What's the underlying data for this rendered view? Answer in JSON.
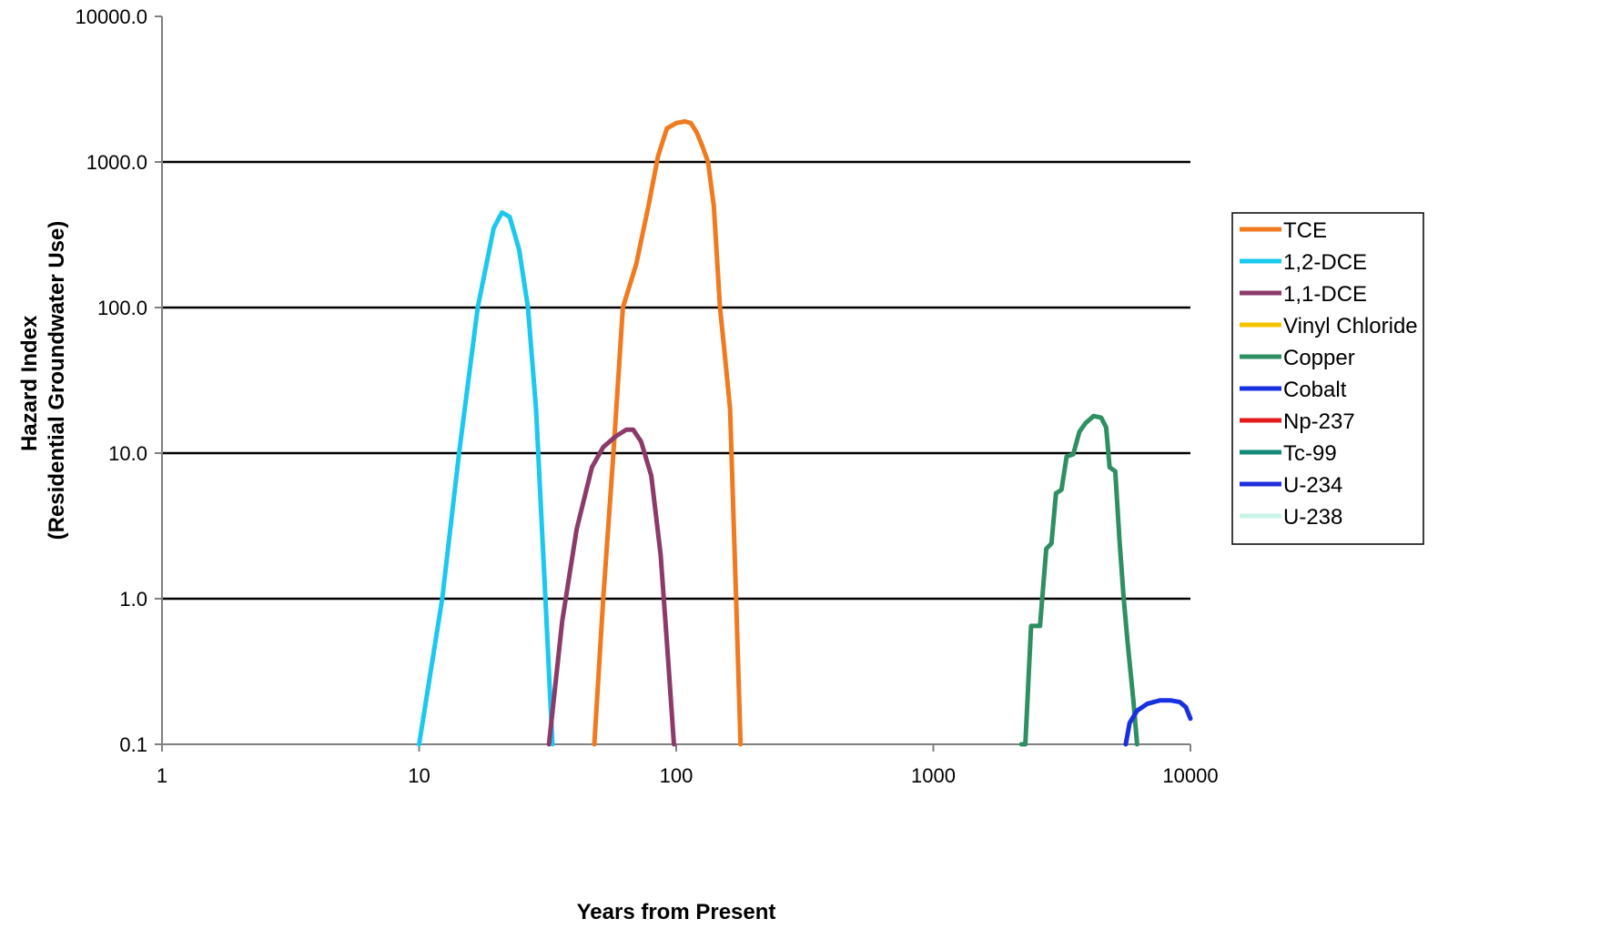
{
  "chart_data": {
    "type": "line",
    "title": "",
    "xlabel": "Years from Present",
    "ylabel_line1": "Hazard Index",
    "ylabel_line2": "(Residential Groundwater Use)",
    "x_scale": "log",
    "y_scale": "log",
    "xlim": [
      1,
      10000
    ],
    "ylim": [
      0.1,
      10000
    ],
    "x_ticks": [
      1,
      10,
      100,
      1000,
      10000
    ],
    "x_tick_labels": [
      "1",
      "10",
      "100",
      "1000",
      "10000"
    ],
    "y_ticks": [
      0.1,
      1,
      10,
      100,
      1000,
      10000
    ],
    "y_tick_labels": [
      "0.1",
      "1.0",
      "10.0",
      "100.0",
      "1000.0",
      "10000.0"
    ],
    "grid": "horizontal major lines",
    "legend_position": "right",
    "series": [
      {
        "name": "TCE",
        "color": "#F07A1F",
        "points": [
          [
            48,
            0.1
          ],
          [
            52,
            1.0
          ],
          [
            57,
            10
          ],
          [
            62,
            100
          ],
          [
            70,
            200
          ],
          [
            78,
            500
          ],
          [
            85,
            1100
          ],
          [
            92,
            1700
          ],
          [
            100,
            1850
          ],
          [
            108,
            1900
          ],
          [
            114,
            1850
          ],
          [
            120,
            1600
          ],
          [
            126,
            1300
          ],
          [
            133,
            1000
          ],
          [
            140,
            500
          ],
          [
            148,
            100
          ],
          [
            154,
            50
          ],
          [
            162,
            20
          ],
          [
            171,
            1.0
          ],
          [
            178,
            0.1
          ]
        ]
      },
      {
        "name": "1,2-DCE",
        "color": "#1BC8EE",
        "points": [
          [
            10,
            0.1
          ],
          [
            12.3,
            1.0
          ],
          [
            14.3,
            10
          ],
          [
            16.9,
            100
          ],
          [
            19.5,
            350
          ],
          [
            21,
            450
          ],
          [
            22.5,
            420
          ],
          [
            24.5,
            250
          ],
          [
            26.5,
            100
          ],
          [
            28.5,
            20
          ],
          [
            31,
            1.0
          ],
          [
            33,
            0.1
          ]
        ]
      },
      {
        "name": "1,1-DCE",
        "color": "#8B3A6A",
        "points": [
          [
            32,
            0.1
          ],
          [
            36,
            0.7
          ],
          [
            41,
            3
          ],
          [
            47,
            8
          ],
          [
            52,
            11
          ],
          [
            58,
            13
          ],
          [
            64,
            14.5
          ],
          [
            68,
            14.5
          ],
          [
            73,
            12
          ],
          [
            80,
            7
          ],
          [
            87,
            2
          ],
          [
            92,
            0.5
          ],
          [
            98,
            0.1
          ]
        ]
      },
      {
        "name": "Vinyl Chloride",
        "color": "#F5C400",
        "points": []
      },
      {
        "name": "Copper",
        "color": "#2E8F62",
        "points": [
          [
            2200,
            0.1
          ],
          [
            2280,
            0.1
          ],
          [
            2400,
            0.65
          ],
          [
            2600,
            0.65
          ],
          [
            2750,
            2.2
          ],
          [
            2880,
            2.4
          ],
          [
            3000,
            5.3
          ],
          [
            3150,
            5.6
          ],
          [
            3300,
            9.5
          ],
          [
            3500,
            9.8
          ],
          [
            3700,
            14
          ],
          [
            3900,
            16
          ],
          [
            4200,
            18
          ],
          [
            4500,
            17.5
          ],
          [
            4700,
            15
          ],
          [
            4850,
            8
          ],
          [
            5100,
            7.5
          ],
          [
            5300,
            2.5
          ],
          [
            5500,
            1.0
          ],
          [
            5700,
            0.5
          ],
          [
            6000,
            0.2
          ],
          [
            6200,
            0.1
          ]
        ]
      },
      {
        "name": "Cobalt",
        "color": "#1730E0",
        "points": [
          [
            5600,
            0.1
          ],
          [
            5800,
            0.14
          ],
          [
            6200,
            0.17
          ],
          [
            6800,
            0.19
          ],
          [
            7600,
            0.2
          ],
          [
            8400,
            0.2
          ],
          [
            9100,
            0.195
          ],
          [
            9600,
            0.18
          ],
          [
            10000,
            0.15
          ]
        ]
      },
      {
        "name": "Np-237",
        "color": "#E31A1C",
        "points": []
      },
      {
        "name": "Tc-99",
        "color": "#138A7A",
        "points": []
      },
      {
        "name": "U-234",
        "color": "#1F2FDC",
        "points": []
      },
      {
        "name": "U-238",
        "color": "#C8F4E8",
        "points": []
      }
    ]
  }
}
